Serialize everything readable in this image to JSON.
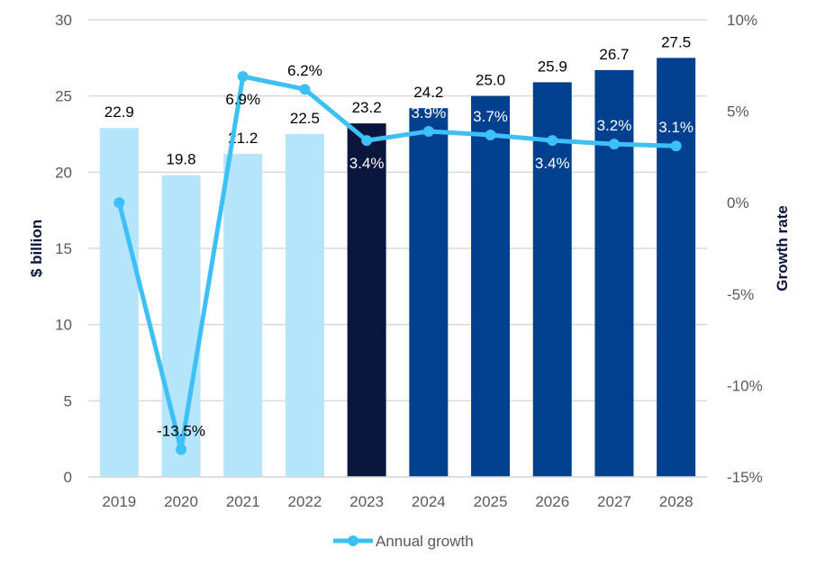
{
  "chart_data": {
    "type": "bar",
    "categories": [
      "2019",
      "2020",
      "2021",
      "2022",
      "2023",
      "2024",
      "2025",
      "2026",
      "2027",
      "2028"
    ],
    "series": [
      {
        "name": "$ billion",
        "axis": "left",
        "type": "bar",
        "values": [
          22.9,
          19.8,
          21.2,
          22.5,
          23.2,
          24.2,
          25.0,
          25.9,
          26.7,
          27.5
        ],
        "labels": [
          "22.9",
          "19.8",
          "21.2",
          "22.5",
          "23.2",
          "24.2",
          "25.0",
          "25.9",
          "26.7",
          "27.5"
        ],
        "colors": [
          "#b5e5fb",
          "#b5e5fb",
          "#b5e5fb",
          "#b5e5fb",
          "#0b163d",
          "#00408f",
          "#00408f",
          "#00408f",
          "#00408f",
          "#00408f"
        ]
      },
      {
        "name": "Annual growth",
        "axis": "right",
        "type": "line",
        "color": "#3cc0f6",
        "values": [
          0.0,
          -13.5,
          6.9,
          6.2,
          3.4,
          3.9,
          3.7,
          3.4,
          3.2,
          3.1
        ],
        "labels": [
          "",
          "-13.5%",
          "6.9%",
          "6.2%",
          "3.4%",
          "3.9%",
          "3.7%",
          "3.4%",
          "3.2%",
          "3.1%"
        ],
        "label_side": [
          "none",
          "above",
          "below",
          "above",
          "below",
          "above",
          "above",
          "below",
          "above",
          "above"
        ]
      }
    ],
    "ylabel": "$ billion",
    "y2label": "Growth rate",
    "ylim": [
      0,
      30
    ],
    "y2lim": [
      -15,
      10
    ],
    "yticks": [
      "0",
      "5",
      "10",
      "15",
      "20",
      "25",
      "30"
    ],
    "y2ticks": [
      "-15%",
      "-10%",
      "-5%",
      "0%",
      "5%",
      "10%"
    ],
    "grid": true,
    "legend": {
      "position": "bottom",
      "entries": [
        "Annual growth"
      ]
    }
  }
}
